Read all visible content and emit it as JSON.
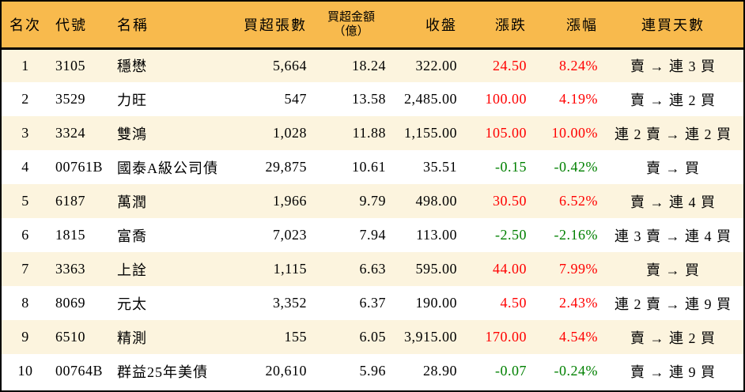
{
  "table": {
    "columns": [
      {
        "key": "rank",
        "label": "名次"
      },
      {
        "key": "code",
        "label": "代號"
      },
      {
        "key": "name",
        "label": "名稱"
      },
      {
        "key": "volume",
        "label": "買超張數"
      },
      {
        "key": "amount",
        "label": "買超金額",
        "label_line2": "（億）"
      },
      {
        "key": "close",
        "label": "收盤"
      },
      {
        "key": "change",
        "label": "漲跌"
      },
      {
        "key": "pct",
        "label": "漲幅"
      },
      {
        "key": "streak",
        "label": "連買天數"
      }
    ],
    "rows": [
      {
        "rank": "1",
        "code": "3105",
        "name": "穩懋",
        "volume": "5,664",
        "amount": "18.24",
        "close": "322.00",
        "change": "24.50",
        "pct": "8.24%",
        "streak": "賣 → 連 3 買",
        "trend": "up"
      },
      {
        "rank": "2",
        "code": "3529",
        "name": "力旺",
        "volume": "547",
        "amount": "13.58",
        "close": "2,485.00",
        "change": "100.00",
        "pct": "4.19%",
        "streak": "賣 → 連 2 買",
        "trend": "up"
      },
      {
        "rank": "3",
        "code": "3324",
        "name": "雙鴻",
        "volume": "1,028",
        "amount": "11.88",
        "close": "1,155.00",
        "change": "105.00",
        "pct": "10.00%",
        "streak": "連 2 賣 → 連 2 買",
        "trend": "up"
      },
      {
        "rank": "4",
        "code": "00761B",
        "name": "國泰A級公司債",
        "volume": "29,875",
        "amount": "10.61",
        "close": "35.51",
        "change": "-0.15",
        "pct": "-0.42%",
        "streak": "賣 → 買",
        "trend": "down"
      },
      {
        "rank": "5",
        "code": "6187",
        "name": "萬潤",
        "volume": "1,966",
        "amount": "9.79",
        "close": "498.00",
        "change": "30.50",
        "pct": "6.52%",
        "streak": "賣 → 連 4 買",
        "trend": "up"
      },
      {
        "rank": "6",
        "code": "1815",
        "name": "富喬",
        "volume": "7,023",
        "amount": "7.94",
        "close": "113.00",
        "change": "-2.50",
        "pct": "-2.16%",
        "streak": "連 3 賣 → 連 4 買",
        "trend": "down"
      },
      {
        "rank": "7",
        "code": "3363",
        "name": "上詮",
        "volume": "1,115",
        "amount": "6.63",
        "close": "595.00",
        "change": "44.00",
        "pct": "7.99%",
        "streak": "賣 → 買",
        "trend": "up"
      },
      {
        "rank": "8",
        "code": "8069",
        "name": "元太",
        "volume": "3,352",
        "amount": "6.37",
        "close": "190.00",
        "change": "4.50",
        "pct": "2.43%",
        "streak": "連 2 賣 → 連 9 買",
        "trend": "up"
      },
      {
        "rank": "9",
        "code": "6510",
        "name": "精測",
        "volume": "155",
        "amount": "6.05",
        "close": "3,915.00",
        "change": "170.00",
        "pct": "4.54%",
        "streak": "賣 → 連 2 買",
        "trend": "up"
      },
      {
        "rank": "10",
        "code": "00764B",
        "name": "群益25年美債",
        "volume": "20,610",
        "amount": "5.96",
        "close": "28.90",
        "change": "-0.07",
        "pct": "-0.24%",
        "streak": "賣 → 連 9 買",
        "trend": "down"
      }
    ]
  },
  "colors": {
    "header_bg": "#f8ba4d",
    "stripe_bg": "#fcf4de",
    "up": "#ff0000",
    "down": "#008000"
  }
}
